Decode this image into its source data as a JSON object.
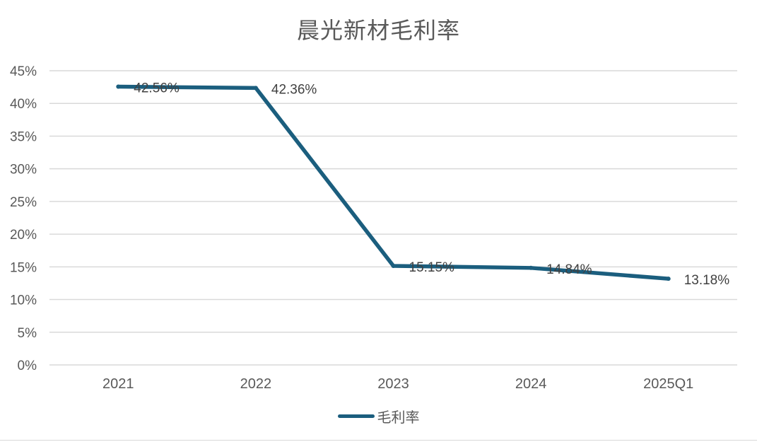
{
  "chart_data": {
    "type": "line",
    "title": "晨光新材毛利率",
    "categories": [
      "2021",
      "2022",
      "2023",
      "2024",
      "2025Q1"
    ],
    "series": [
      {
        "name": "毛利率",
        "values": [
          42.56,
          42.36,
          15.15,
          14.84,
          13.18
        ],
        "data_labels": [
          "42.56%",
          "42.36%",
          "15.15%",
          "14.84%",
          "13.18%"
        ]
      }
    ],
    "ylim": [
      0,
      45
    ],
    "y_ticks": [
      0,
      5,
      10,
      15,
      20,
      25,
      30,
      35,
      40,
      45
    ],
    "y_tick_labels": [
      "0%",
      "5%",
      "10%",
      "15%",
      "20%",
      "25%",
      "30%",
      "35%",
      "40%",
      "45%"
    ],
    "xlabel": "",
    "ylabel": "",
    "grid": true,
    "legend_position": "bottom"
  },
  "colors": {
    "series": "#1b5e7e",
    "grid": "#d9d9d9",
    "axis_text": "#595959",
    "title_text": "#595959",
    "label_text": "#404040"
  }
}
